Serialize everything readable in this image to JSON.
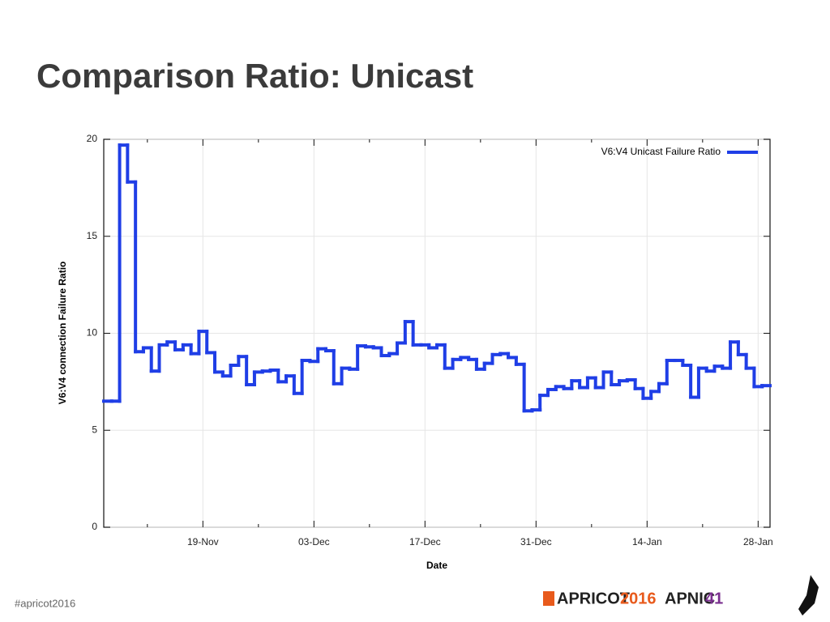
{
  "slide": {
    "title": "Comparison Ratio: Unicast",
    "footer": "#apricot2016",
    "logo_apricot": "APRICOT",
    "logo_apricot_year": "2016",
    "logo_apnic": "APNIC",
    "logo_apnic_number": "41"
  },
  "chart_data": {
    "type": "step",
    "x_label": "Date",
    "y_label": "V6:V4 connection Failure Ratio",
    "categories": [
      null,
      null,
      null,
      null,
      null,
      null,
      null,
      null,
      null,
      null,
      null,
      null,
      "19-Nov",
      null,
      null,
      null,
      null,
      null,
      null,
      null,
      null,
      null,
      null,
      null,
      null,
      null,
      "03-Dec",
      null,
      null,
      null,
      null,
      null,
      null,
      null,
      null,
      null,
      null,
      null,
      null,
      null,
      "17-Dec",
      null,
      null,
      null,
      null,
      null,
      null,
      null,
      null,
      null,
      null,
      null,
      null,
      null,
      "31-Dec",
      null,
      null,
      null,
      null,
      null,
      null,
      null,
      null,
      null,
      null,
      null,
      null,
      null,
      "14-Jan",
      null,
      null,
      null,
      null,
      null,
      null,
      null,
      null,
      null,
      null,
      null,
      null,
      null,
      "28-Jan",
      null
    ],
    "series": [
      {
        "name": "V6:V4 Unicast Failure Ratio",
        "color": "#1f3ee6",
        "values": [
          6.5,
          6.5,
          19.7,
          17.8,
          9.05,
          9.25,
          8.05,
          9.4,
          9.55,
          9.15,
          9.4,
          8.95,
          10.1,
          9.0,
          8.0,
          7.8,
          8.35,
          8.8,
          7.35,
          8.0,
          8.05,
          8.1,
          7.5,
          7.8,
          6.9,
          8.6,
          8.55,
          9.2,
          9.1,
          7.4,
          8.2,
          8.15,
          9.35,
          9.3,
          9.25,
          8.85,
          8.95,
          9.5,
          10.6,
          9.4,
          9.4,
          9.25,
          9.4,
          8.2,
          8.65,
          8.75,
          8.65,
          8.15,
          8.45,
          8.9,
          8.95,
          8.75,
          8.4,
          6.0,
          6.05,
          6.8,
          7.1,
          7.25,
          7.15,
          7.55,
          7.2,
          7.7,
          7.2,
          8.0,
          7.35,
          7.55,
          7.6,
          7.15,
          6.65,
          7.0,
          7.4,
          8.6,
          8.6,
          8.35,
          6.7,
          8.2,
          8.05,
          8.3,
          8.2,
          9.55,
          8.9,
          8.2,
          7.25,
          7.3
        ]
      }
    ],
    "ylim": [
      0,
      20
    ],
    "yticks": [
      0,
      5,
      10,
      15,
      20
    ],
    "grid": true,
    "legend": "upper right"
  }
}
